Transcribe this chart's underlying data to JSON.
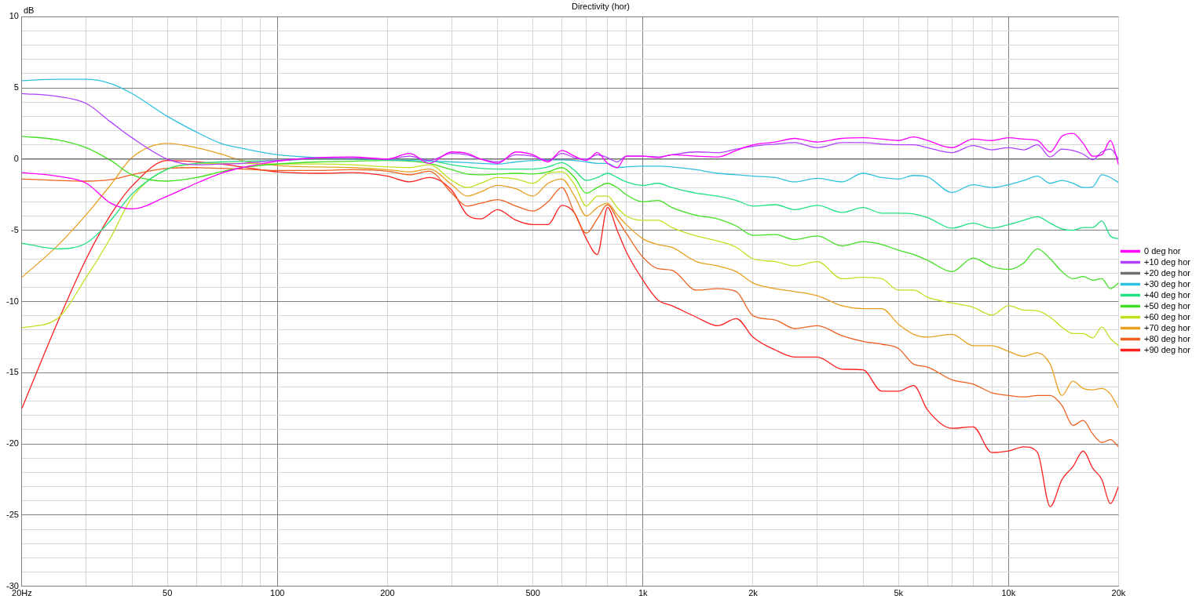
{
  "chart_data": {
    "type": "line",
    "title": "Directivity (hor)",
    "ylabel": "dB",
    "x": [
      20,
      25,
      30,
      35,
      40,
      50,
      60,
      70,
      80,
      100,
      130,
      160,
      200,
      230,
      260,
      300,
      330,
      360,
      400,
      450,
      500,
      550,
      600,
      650,
      700,
      750,
      800,
      850,
      900,
      1000,
      1100,
      1200,
      1400,
      1600,
      1800,
      2000,
      2300,
      2600,
      3000,
      3500,
      4000,
      4500,
      5000,
      5500,
      6000,
      7000,
      8000,
      9000,
      10000,
      11000,
      12000,
      13000,
      14000,
      15000,
      16000,
      17000,
      18000,
      19000,
      20000
    ],
    "log": "x",
    "grid": true,
    "legend": "right",
    "marker": "none",
    "line_style": "solid",
    "xlim": [
      20,
      20000
    ],
    "ylim": [
      -30,
      10
    ],
    "xticks": [
      {
        "value": 20,
        "label": "20Hz"
      },
      {
        "value": 30,
        "label": null
      },
      {
        "value": 40,
        "label": null
      },
      50,
      {
        "value": 60,
        "label": null
      },
      {
        "value": 70,
        "label": null
      },
      {
        "value": 80,
        "label": null
      },
      {
        "value": 90,
        "label": null
      },
      100,
      200,
      {
        "value": 300,
        "label": null
      },
      {
        "value": 400,
        "label": null
      },
      500,
      {
        "value": 600,
        "label": null
      },
      {
        "value": 700,
        "label": null
      },
      {
        "value": 800,
        "label": null
      },
      {
        "value": 900,
        "label": null
      },
      {
        "value": 1000,
        "label": "1k"
      },
      {
        "value": 2000,
        "label": "2k"
      },
      {
        "value": 3000,
        "label": null
      },
      {
        "value": 4000,
        "label": null
      },
      {
        "value": 5000,
        "label": "5k"
      },
      {
        "value": 6000,
        "label": null
      },
      {
        "value": 7000,
        "label": null
      },
      {
        "value": 8000,
        "label": null
      },
      {
        "value": 9000,
        "label": null
      },
      {
        "value": 10000,
        "label": "10k"
      },
      {
        "value": 20000,
        "label": "20k"
      }
    ],
    "yticks": [
      -30,
      {
        "value": -29,
        "label": null
      },
      {
        "value": -28,
        "label": null
      },
      {
        "value": -27,
        "label": null
      },
      {
        "value": -26,
        "label": null
      },
      -25,
      {
        "value": -24,
        "label": null
      },
      {
        "value": -23,
        "label": null
      },
      {
        "value": -22,
        "label": null
      },
      {
        "value": -21,
        "label": null
      },
      -20,
      {
        "value": -19,
        "label": null
      },
      {
        "value": -18,
        "label": null
      },
      {
        "value": -17,
        "label": null
      },
      {
        "value": -16,
        "label": null
      },
      -15,
      {
        "value": -14,
        "label": null
      },
      {
        "value": -13,
        "label": null
      },
      {
        "value": -12,
        "label": null
      },
      {
        "value": -11,
        "label": null
      },
      -10,
      {
        "value": -9,
        "label": null
      },
      {
        "value": -8,
        "label": null
      },
      {
        "value": -7,
        "label": null
      },
      {
        "value": -6,
        "label": null
      },
      -5,
      {
        "value": -4,
        "label": null
      },
      {
        "value": -3,
        "label": null
      },
      {
        "value": -2,
        "label": null
      },
      {
        "value": -1,
        "label": null
      },
      0,
      {
        "value": 1,
        "label": null
      },
      {
        "value": 2,
        "label": null
      },
      {
        "value": 3,
        "label": null
      },
      {
        "value": 4,
        "label": null
      },
      5,
      {
        "value": 6,
        "label": null
      },
      {
        "value": 7,
        "label": null
      },
      {
        "value": 8,
        "label": null
      },
      {
        "value": 9,
        "label": null
      },
      10
    ],
    "series": [
      {
        "name": "0 deg hor",
        "color": "#ff00ff",
        "values": [
          -0.95,
          -1.2,
          -1.7,
          -3.1,
          -3.5,
          -2.6,
          -1.7,
          -1.0,
          -0.6,
          -0.15,
          0.1,
          0.15,
          0.0,
          0.4,
          -0.3,
          0.5,
          0.4,
          0.0,
          -0.3,
          0.5,
          0.3,
          -0.2,
          0.6,
          0.2,
          -0.1,
          0.45,
          -0.3,
          -0.6,
          0.2,
          0.2,
          0.1,
          0.3,
          0.2,
          0.15,
          0.6,
          1.0,
          1.2,
          1.45,
          1.2,
          1.45,
          1.5,
          1.4,
          1.3,
          1.55,
          1.3,
          0.8,
          1.4,
          1.3,
          1.5,
          1.4,
          1.3,
          0.5,
          1.6,
          1.8,
          1.1,
          0.2,
          0.3,
          1.3,
          -0.4
        ]
      },
      {
        "name": "+10 deg hor",
        "color": "#b040ff",
        "values": [
          4.6,
          4.4,
          3.9,
          2.6,
          1.5,
          0.0,
          -0.4,
          -0.35,
          -0.3,
          -0.1,
          0.1,
          0.1,
          0.0,
          0.2,
          -0.1,
          0.4,
          0.3,
          0.0,
          -0.2,
          0.3,
          0.2,
          -0.1,
          0.4,
          0.1,
          0.0,
          0.3,
          0.1,
          -0.2,
          0.2,
          0.2,
          0.15,
          0.3,
          0.5,
          0.45,
          0.7,
          0.9,
          1.05,
          1.15,
          0.8,
          1.15,
          1.15,
          1.05,
          1.0,
          1.0,
          0.8,
          0.45,
          0.95,
          0.65,
          0.8,
          0.65,
          1.0,
          0.15,
          0.7,
          0.6,
          0.35,
          -0.05,
          0.5,
          0.7,
          0.0
        ]
      },
      {
        "name": "+20 deg hor",
        "color": "#707070",
        "x": [
          20,
          20000
        ],
        "values": [
          0,
          0
        ]
      },
      {
        "name": "+30 deg hor",
        "color": "#30c0e0",
        "values": [
          5.5,
          5.6,
          5.6,
          5.3,
          4.6,
          3.0,
          1.9,
          1.1,
          0.75,
          0.3,
          0.1,
          0.0,
          -0.05,
          -0.1,
          -0.15,
          -0.2,
          -0.25,
          -0.3,
          -0.35,
          -0.2,
          -0.1,
          -0.05,
          -0.05,
          -0.1,
          -0.2,
          -0.3,
          -0.3,
          -0.6,
          -0.55,
          -0.5,
          -0.5,
          -0.55,
          -0.75,
          -1.0,
          -1.1,
          -1.2,
          -1.3,
          -1.6,
          -1.35,
          -1.6,
          -1.0,
          -1.3,
          -1.4,
          -1.15,
          -1.25,
          -2.35,
          -1.8,
          -2.0,
          -1.8,
          -1.5,
          -1.2,
          -1.7,
          -1.5,
          -1.7,
          -2.0,
          -1.95,
          -1.1,
          -1.3,
          -1.65
        ]
      },
      {
        "name": "+40 deg hor",
        "color": "#20e080",
        "values": [
          -5.9,
          -6.3,
          -5.9,
          -4.3,
          -2.45,
          -0.7,
          -0.3,
          -0.2,
          -0.15,
          -0.1,
          0,
          0,
          0,
          0,
          -0.1,
          -0.4,
          -0.55,
          -0.65,
          -0.7,
          -0.7,
          -0.7,
          -0.55,
          -0.25,
          -0.8,
          -1.5,
          -1.3,
          -1.0,
          -1.3,
          -1.6,
          -1.85,
          -1.7,
          -2.0,
          -2.4,
          -2.6,
          -2.9,
          -3.3,
          -3.2,
          -3.55,
          -3.25,
          -3.75,
          -3.4,
          -3.8,
          -3.8,
          -3.85,
          -4.1,
          -4.85,
          -4.5,
          -4.85,
          -4.6,
          -4.3,
          -4.05,
          -4.5,
          -4.9,
          -5.0,
          -4.8,
          -4.8,
          -4.35,
          -5.4,
          -5.6
        ]
      },
      {
        "name": "+50 deg hor",
        "color": "#40e020",
        "values": [
          1.6,
          1.35,
          0.8,
          -0.1,
          -1.1,
          -1.55,
          -1.3,
          -0.9,
          -0.6,
          -0.35,
          -0.2,
          -0.15,
          -0.1,
          -0.15,
          -0.3,
          -0.75,
          -1.05,
          -1.1,
          -1.05,
          -1.0,
          -1.05,
          -0.9,
          -0.6,
          -1.3,
          -2.4,
          -2.0,
          -1.7,
          -2.0,
          -2.5,
          -3.0,
          -2.9,
          -3.4,
          -3.95,
          -4.2,
          -4.7,
          -5.35,
          -5.3,
          -5.65,
          -5.4,
          -6.1,
          -5.8,
          -6.0,
          -6.4,
          -6.7,
          -7.1,
          -7.9,
          -6.95,
          -7.55,
          -7.75,
          -7.3,
          -6.3,
          -7.0,
          -7.9,
          -8.4,
          -8.25,
          -8.5,
          -8.4,
          -9.1,
          -8.7
        ]
      },
      {
        "name": "+60 deg hor",
        "color": "#c0e020",
        "values": [
          -11.85,
          -11.2,
          -8.3,
          -5.5,
          -2.7,
          -0.7,
          -0.35,
          -0.3,
          -0.3,
          -0.35,
          -0.35,
          -0.4,
          -0.55,
          -0.6,
          -0.4,
          -1.5,
          -2.0,
          -1.7,
          -1.3,
          -1.4,
          -1.7,
          -1.0,
          -0.9,
          -1.8,
          -3.3,
          -2.6,
          -2.6,
          -3.4,
          -4.0,
          -4.3,
          -4.3,
          -4.8,
          -5.4,
          -5.75,
          -6.2,
          -7.0,
          -7.2,
          -7.5,
          -7.2,
          -8.4,
          -8.3,
          -8.4,
          -9.2,
          -9.2,
          -9.7,
          -10.1,
          -10.4,
          -10.95,
          -10.3,
          -10.6,
          -10.65,
          -11.1,
          -11.8,
          -12.25,
          -12.25,
          -12.55,
          -11.8,
          -12.6,
          -13.1
        ]
      },
      {
        "name": "+70 deg hor",
        "color": "#e8a020",
        "values": [
          -8.3,
          -6.1,
          -3.9,
          -1.8,
          0.1,
          1.1,
          0.8,
          0.35,
          -0.1,
          -0.45,
          -0.55,
          -0.6,
          -0.75,
          -0.9,
          -0.7,
          -1.8,
          -2.6,
          -2.3,
          -1.85,
          -2.1,
          -2.6,
          -1.7,
          -1.4,
          -2.6,
          -4.0,
          -3.4,
          -3.1,
          -3.9,
          -4.6,
          -5.6,
          -6.0,
          -6.2,
          -7.2,
          -7.5,
          -7.9,
          -8.7,
          -9.1,
          -9.3,
          -9.6,
          -10.3,
          -10.5,
          -10.5,
          -11.6,
          -12.3,
          -12.5,
          -12.3,
          -13.1,
          -13.1,
          -13.5,
          -13.85,
          -13.6,
          -14.4,
          -16.6,
          -15.6,
          -16.1,
          -16.2,
          -16.1,
          -16.5,
          -17.5
        ]
      },
      {
        "name": "+80 deg hor",
        "color": "#f06020",
        "values": [
          -1.4,
          -1.5,
          -1.55,
          -1.45,
          -1.1,
          -0.65,
          -0.6,
          -0.65,
          -0.7,
          -0.8,
          -0.8,
          -0.75,
          -0.85,
          -1.1,
          -0.85,
          -2.4,
          -3.3,
          -3.1,
          -2.85,
          -3.3,
          -3.65,
          -3.0,
          -2.0,
          -3.8,
          -5.2,
          -4.2,
          -3.2,
          -4.2,
          -5.2,
          -6.9,
          -7.7,
          -7.8,
          -9.2,
          -9.1,
          -9.3,
          -11.0,
          -11.3,
          -11.9,
          -11.7,
          -12.4,
          -12.8,
          -13.0,
          -13.3,
          -14.4,
          -14.6,
          -15.5,
          -15.8,
          -16.4,
          -16.6,
          -16.7,
          -16.6,
          -16.6,
          -17.3,
          -18.7,
          -18.35,
          -19.3,
          -19.9,
          -19.7,
          -20.2
        ]
      },
      {
        "name": "+90 deg hor",
        "color": "#ff2020",
        "values": [
          -17.5,
          -11.5,
          -7.0,
          -3.9,
          -1.9,
          -0.1,
          -0.2,
          -0.35,
          -0.55,
          -0.9,
          -1.0,
          -0.95,
          -1.2,
          -1.6,
          -1.3,
          -2.2,
          -3.9,
          -4.2,
          -3.55,
          -4.3,
          -4.6,
          -4.6,
          -3.25,
          -3.8,
          -5.6,
          -6.7,
          -3.4,
          -5.0,
          -6.5,
          -8.5,
          -9.9,
          -10.3,
          -11.1,
          -11.7,
          -11.2,
          -12.5,
          -13.4,
          -13.9,
          -13.9,
          -14.75,
          -14.8,
          -16.3,
          -16.3,
          -15.9,
          -17.6,
          -18.9,
          -18.8,
          -20.6,
          -20.5,
          -20.2,
          -20.6,
          -24.4,
          -22.5,
          -21.6,
          -20.5,
          -21.7,
          -22.5,
          -24.2,
          -23.0
        ]
      }
    ]
  }
}
